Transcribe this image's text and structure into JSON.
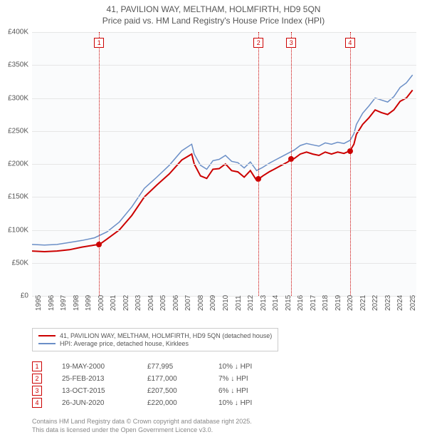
{
  "title_line1": "41, PAVILION WAY, MELTHAM, HOLMFIRTH, HD9 5QN",
  "title_line2": "Price paid vs. HM Land Registry's House Price Index (HPI)",
  "chart": {
    "type": "line",
    "background_color": "#fafbfc",
    "grid_color": "#e6e6e6",
    "xlim": [
      1995,
      2025.8
    ],
    "ylim": [
      0,
      400000
    ],
    "ytick_step": 50000,
    "yticks": [
      "£0",
      "£50K",
      "£100K",
      "£150K",
      "£200K",
      "£250K",
      "£300K",
      "£350K",
      "£400K"
    ],
    "xticks": [
      "1995",
      "1996",
      "1997",
      "1998",
      "1999",
      "2000",
      "2001",
      "2002",
      "2003",
      "2004",
      "2005",
      "2006",
      "2007",
      "2008",
      "2009",
      "2010",
      "2011",
      "2012",
      "2013",
      "2014",
      "2015",
      "2016",
      "2017",
      "2018",
      "2019",
      "2020",
      "2021",
      "2022",
      "2023",
      "2024",
      "2025"
    ],
    "series": [
      {
        "name": "property",
        "label": "41, PAVILION WAY, MELTHAM, HOLMFIRTH, HD9 5QN (detached house)",
        "color": "#cc0000",
        "width": 2,
        "data": [
          [
            1995,
            68000
          ],
          [
            1996,
            67000
          ],
          [
            1997,
            68000
          ],
          [
            1998,
            70000
          ],
          [
            1999,
            74000
          ],
          [
            2000,
            77000
          ],
          [
            2000.4,
            77995
          ],
          [
            2001,
            86000
          ],
          [
            2002,
            100000
          ],
          [
            2003,
            122000
          ],
          [
            2004,
            150000
          ],
          [
            2005,
            168000
          ],
          [
            2006,
            185000
          ],
          [
            2007,
            206000
          ],
          [
            2007.8,
            215000
          ],
          [
            2008,
            200000
          ],
          [
            2008.5,
            182000
          ],
          [
            2009,
            178000
          ],
          [
            2009.5,
            192000
          ],
          [
            2010,
            193000
          ],
          [
            2010.5,
            200000
          ],
          [
            2011,
            190000
          ],
          [
            2011.5,
            188000
          ],
          [
            2012,
            180000
          ],
          [
            2012.5,
            190000
          ],
          [
            2013,
            175000
          ],
          [
            2013.15,
            177000
          ],
          [
            2013.5,
            182000
          ],
          [
            2014,
            188000
          ],
          [
            2014.5,
            193000
          ],
          [
            2015,
            198000
          ],
          [
            2015.5,
            203000
          ],
          [
            2015.78,
            207500
          ],
          [
            2016,
            208000
          ],
          [
            2016.5,
            215000
          ],
          [
            2017,
            218000
          ],
          [
            2017.5,
            215000
          ],
          [
            2018,
            213000
          ],
          [
            2018.5,
            218000
          ],
          [
            2019,
            215000
          ],
          [
            2019.5,
            218000
          ],
          [
            2020,
            216000
          ],
          [
            2020.49,
            220000
          ],
          [
            2020.8,
            230000
          ],
          [
            2021,
            245000
          ],
          [
            2021.5,
            260000
          ],
          [
            2022,
            270000
          ],
          [
            2022.5,
            282000
          ],
          [
            2023,
            278000
          ],
          [
            2023.5,
            275000
          ],
          [
            2024,
            282000
          ],
          [
            2024.5,
            295000
          ],
          [
            2025,
            300000
          ],
          [
            2025.5,
            312000
          ]
        ]
      },
      {
        "name": "hpi",
        "label": "HPI: Average price, detached house, Kirklees",
        "color": "#6b8fc7",
        "width": 1.5,
        "data": [
          [
            1995,
            78000
          ],
          [
            1996,
            77000
          ],
          [
            1997,
            78000
          ],
          [
            1998,
            81000
          ],
          [
            1999,
            84000
          ],
          [
            2000,
            88000
          ],
          [
            2001,
            97000
          ],
          [
            2002,
            112000
          ],
          [
            2003,
            135000
          ],
          [
            2004,
            163000
          ],
          [
            2005,
            180000
          ],
          [
            2006,
            198000
          ],
          [
            2007,
            220000
          ],
          [
            2007.8,
            230000
          ],
          [
            2008,
            215000
          ],
          [
            2008.5,
            198000
          ],
          [
            2009,
            192000
          ],
          [
            2009.5,
            205000
          ],
          [
            2010,
            207000
          ],
          [
            2010.5,
            213000
          ],
          [
            2011,
            204000
          ],
          [
            2011.5,
            202000
          ],
          [
            2012,
            194000
          ],
          [
            2012.5,
            203000
          ],
          [
            2013,
            190000
          ],
          [
            2013.5,
            195000
          ],
          [
            2014,
            201000
          ],
          [
            2014.5,
            206000
          ],
          [
            2015,
            211000
          ],
          [
            2015.5,
            216000
          ],
          [
            2016,
            221000
          ],
          [
            2016.5,
            228000
          ],
          [
            2017,
            231000
          ],
          [
            2017.5,
            229000
          ],
          [
            2018,
            227000
          ],
          [
            2018.5,
            232000
          ],
          [
            2019,
            230000
          ],
          [
            2019.5,
            233000
          ],
          [
            2020,
            231000
          ],
          [
            2020.5,
            236000
          ],
          [
            2020.8,
            246000
          ],
          [
            2021,
            260000
          ],
          [
            2021.5,
            277000
          ],
          [
            2022,
            288000
          ],
          [
            2022.5,
            300000
          ],
          [
            2023,
            297000
          ],
          [
            2023.5,
            294000
          ],
          [
            2024,
            302000
          ],
          [
            2024.5,
            316000
          ],
          [
            2025,
            323000
          ],
          [
            2025.5,
            335000
          ]
        ]
      }
    ],
    "markers": [
      {
        "n": "1",
        "x": 2000.38,
        "color": "#cc0000"
      },
      {
        "n": "2",
        "x": 2013.15,
        "color": "#cc0000"
      },
      {
        "n": "3",
        "x": 2015.78,
        "color": "#cc0000"
      },
      {
        "n": "4",
        "x": 2020.49,
        "color": "#cc0000"
      }
    ],
    "points": [
      {
        "x": 2000.38,
        "y": 77995,
        "color": "#cc0000"
      },
      {
        "x": 2013.15,
        "y": 177000,
        "color": "#cc0000"
      },
      {
        "x": 2015.78,
        "y": 207500,
        "color": "#cc0000"
      },
      {
        "x": 2020.49,
        "y": 220000,
        "color": "#cc0000"
      }
    ]
  },
  "legend": {
    "border_color": "#cccccc"
  },
  "transactions": [
    {
      "n": "1",
      "date": "19-MAY-2000",
      "price": "£77,995",
      "delta": "10% ↓ HPI"
    },
    {
      "n": "2",
      "date": "25-FEB-2013",
      "price": "£177,000",
      "delta": "7% ↓ HPI"
    },
    {
      "n": "3",
      "date": "13-OCT-2015",
      "price": "£207,500",
      "delta": "6% ↓ HPI"
    },
    {
      "n": "4",
      "date": "26-JUN-2020",
      "price": "£220,000",
      "delta": "10% ↓ HPI"
    }
  ],
  "footer_line1": "Contains HM Land Registry data © Crown copyright and database right 2025.",
  "footer_line2": "This data is licensed under the Open Government Licence v3.0."
}
